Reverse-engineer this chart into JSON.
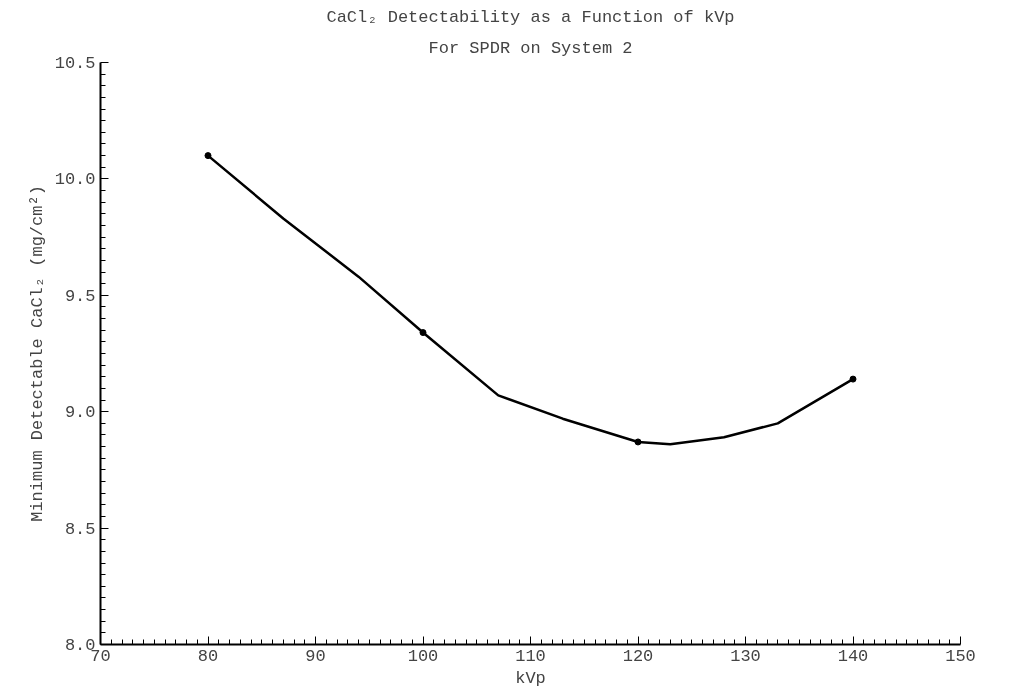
{
  "chart_data": {
    "type": "line",
    "title": "CaCl₂ Detectability as a Function of kVp",
    "subtitle": "For SPDR on System 2",
    "xlabel": "kVp",
    "ylabel": "Minimum Detectable CaCl₂ (mg/cm²)",
    "series": [
      {
        "color": "#000000",
        "x": [
          80,
          87,
          94,
          100,
          107,
          113,
          120,
          123,
          128,
          133,
          140
        ],
        "values": [
          10.1,
          9.83,
          9.58,
          9.34,
          9.07,
          8.97,
          8.87,
          8.86,
          8.89,
          8.95,
          9.14
        ],
        "marker": "none"
      },
      {
        "type": "scatter",
        "color": "#000000",
        "x": [
          80,
          100,
          120,
          140
        ],
        "values": [
          10.1,
          9.34,
          8.87,
          9.14
        ],
        "marker": "circle"
      }
    ],
    "xlim": [
      70,
      150
    ],
    "xticks": [
      70,
      80,
      90,
      100,
      110,
      120,
      130,
      140,
      150
    ],
    "ylim": [
      8.0,
      10.5
    ],
    "yticks": [
      {
        "value": 8.0,
        "label": "8.0"
      },
      {
        "value": 8.5,
        "label": "8.5"
      },
      {
        "value": 9.0,
        "label": "9.0"
      },
      {
        "value": 9.5,
        "label": "9.5"
      },
      {
        "value": 10.0,
        "label": "10.0"
      },
      {
        "value": 10.5,
        "label": "10.5"
      }
    ],
    "grid": false
  }
}
